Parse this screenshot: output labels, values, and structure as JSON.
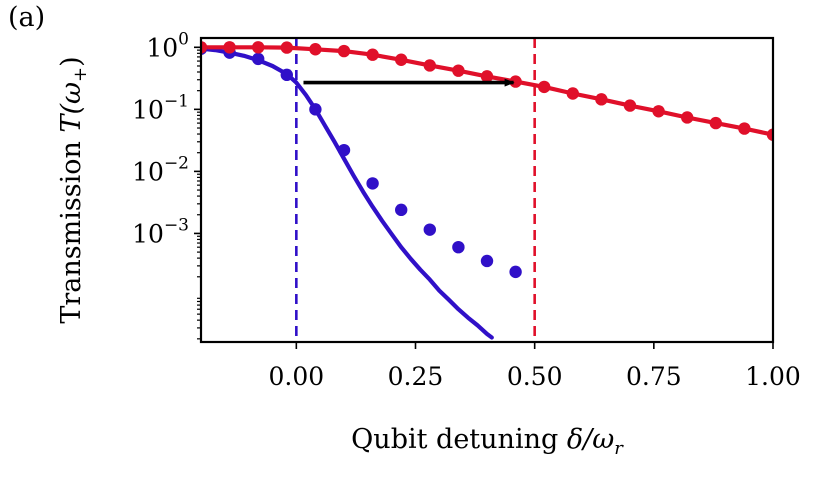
{
  "panel_label": "(a)",
  "colors": {
    "blue": "#3010c8",
    "red": "#e0102a",
    "arrow": "#000000"
  },
  "chart_data": {
    "type": "line+scatter",
    "title": "",
    "xlabel": "Qubit detuning δ/ω_r",
    "xlabel_parts": {
      "prefix": "Qubit detuning ",
      "math": "δ/ω",
      "sub": "r"
    },
    "ylabel": "Transmission T(ω₊)",
    "ylabel_parts": {
      "prefix": "Transmission ",
      "math": "T(ω",
      "sub": "+",
      "close": ")"
    },
    "xlim": [
      -0.2,
      1.0
    ],
    "ylim_log10": [
      -4.75,
      0.15
    ],
    "yscale": "log",
    "xticks": [
      0.0,
      0.25,
      0.5,
      0.75,
      1.0
    ],
    "xtick_labels": [
      "0.00",
      "0.25",
      "0.50",
      "0.75",
      "1.00"
    ],
    "yticks_exp": [
      0,
      -1,
      -2,
      -3
    ],
    "yticks_labels": [
      {
        "base": "10",
        "exp": "0"
      },
      {
        "base": "10",
        "exp": "−1"
      },
      {
        "base": "10",
        "exp": "−2"
      },
      {
        "base": "10",
        "exp": "−3"
      }
    ],
    "vlines": [
      {
        "x": 0.0,
        "style": "dashed",
        "color": "blue"
      },
      {
        "x": 0.5,
        "style": "dashed",
        "color": "red"
      }
    ],
    "arrow": {
      "x_start": 0.015,
      "x_end": 0.46,
      "y": 0.27
    },
    "series": [
      {
        "name": "blue-data",
        "color": "blue",
        "points_x": [
          -0.2,
          -0.14,
          -0.08,
          -0.02,
          0.04,
          0.1,
          0.16,
          0.22,
          0.28,
          0.34,
          0.4,
          0.46
        ],
        "points_y": [
          0.95,
          0.82,
          0.65,
          0.36,
          0.1,
          0.022,
          0.0064,
          0.0024,
          0.00115,
          0.0006,
          0.00036,
          0.00024
        ],
        "curve_x": [
          -0.2,
          -0.17,
          -0.14,
          -0.11,
          -0.08,
          -0.05,
          -0.02,
          0.0,
          0.02,
          0.04,
          0.06,
          0.08,
          0.1,
          0.12,
          0.14,
          0.16,
          0.18,
          0.2,
          0.22,
          0.24,
          0.26,
          0.28,
          0.3,
          0.32,
          0.34,
          0.36,
          0.38,
          0.4,
          0.41
        ],
        "curve_y": [
          0.95,
          0.9,
          0.82,
          0.73,
          0.62,
          0.5,
          0.37,
          0.27,
          0.17,
          0.1,
          0.055,
          0.03,
          0.016,
          0.0086,
          0.0047,
          0.0027,
          0.0016,
          0.00097,
          0.0006,
          0.00039,
          0.00026,
          0.00018,
          0.00012,
          8.5e-05,
          6e-05,
          4.4e-05,
          3.3e-05,
          2.4e-05,
          2.1e-05
        ]
      },
      {
        "name": "red-data",
        "color": "red",
        "points_x": [
          -0.2,
          -0.14,
          -0.08,
          -0.02,
          0.04,
          0.1,
          0.16,
          0.22,
          0.28,
          0.34,
          0.4,
          0.46,
          0.52,
          0.58,
          0.64,
          0.7,
          0.76,
          0.82,
          0.88,
          0.94,
          1.0
        ],
        "points_y": [
          1.0,
          1.0,
          1.0,
          0.99,
          0.93,
          0.87,
          0.76,
          0.63,
          0.51,
          0.42,
          0.34,
          0.28,
          0.23,
          0.18,
          0.145,
          0.115,
          0.093,
          0.074,
          0.06,
          0.049,
          0.039
        ],
        "curve_x": [
          -0.2,
          -0.14,
          -0.08,
          -0.02,
          0.04,
          0.1,
          0.16,
          0.22,
          0.28,
          0.34,
          0.4,
          0.46,
          0.52,
          0.58,
          0.64,
          0.7,
          0.76,
          0.82,
          0.88,
          0.94,
          1.0
        ],
        "curve_y": [
          1.0,
          1.0,
          1.0,
          0.99,
          0.93,
          0.87,
          0.76,
          0.63,
          0.51,
          0.42,
          0.34,
          0.28,
          0.23,
          0.18,
          0.145,
          0.115,
          0.093,
          0.074,
          0.06,
          0.049,
          0.039
        ]
      }
    ]
  }
}
